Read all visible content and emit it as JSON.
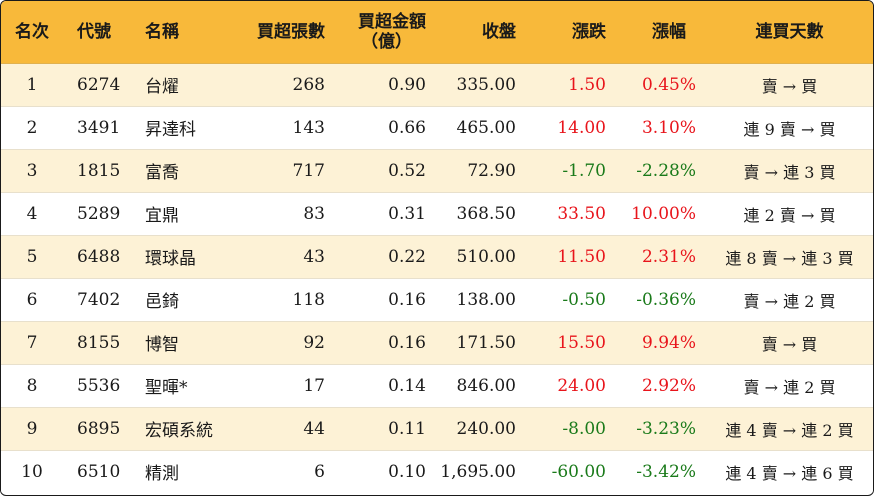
{
  "headers": {
    "rank": "名次",
    "code": "代號",
    "name": "名稱",
    "net_buy_lots": "買超張數",
    "net_buy_amount_line1": "買超金額",
    "net_buy_amount_line2": "（億）",
    "close": "收盤",
    "change": "漲跌",
    "change_pct": "漲幅",
    "streak": "連買天數"
  },
  "colors": {
    "header_bg": "#f8b93a",
    "row_alt_bg": "#fdf2d6",
    "up": "#e8141b",
    "down": "#1a7a1a"
  },
  "rows": [
    {
      "rank": "1",
      "code": "6274",
      "name": "台燿",
      "lots": "268",
      "amount": "0.90",
      "close": "335.00",
      "change": "1.50",
      "pct": "0.45%",
      "dir": "up",
      "streak": "賣 → 買"
    },
    {
      "rank": "2",
      "code": "3491",
      "name": "昇達科",
      "lots": "143",
      "amount": "0.66",
      "close": "465.00",
      "change": "14.00",
      "pct": "3.10%",
      "dir": "up",
      "streak": "連 9 賣 → 買"
    },
    {
      "rank": "3",
      "code": "1815",
      "name": "富喬",
      "lots": "717",
      "amount": "0.52",
      "close": "72.90",
      "change": "-1.70",
      "pct": "-2.28%",
      "dir": "down",
      "streak": "賣 → 連 3 買"
    },
    {
      "rank": "4",
      "code": "5289",
      "name": "宜鼎",
      "lots": "83",
      "amount": "0.31",
      "close": "368.50",
      "change": "33.50",
      "pct": "10.00%",
      "dir": "up",
      "streak": "連 2 賣 → 買"
    },
    {
      "rank": "5",
      "code": "6488",
      "name": "環球晶",
      "lots": "43",
      "amount": "0.22",
      "close": "510.00",
      "change": "11.50",
      "pct": "2.31%",
      "dir": "up",
      "streak": "連 8 賣 → 連 3 買"
    },
    {
      "rank": "6",
      "code": "7402",
      "name": "邑錡",
      "lots": "118",
      "amount": "0.16",
      "close": "138.00",
      "change": "-0.50",
      "pct": "-0.36%",
      "dir": "down",
      "streak": "賣 → 連 2 買"
    },
    {
      "rank": "7",
      "code": "8155",
      "name": "博智",
      "lots": "92",
      "amount": "0.16",
      "close": "171.50",
      "change": "15.50",
      "pct": "9.94%",
      "dir": "up",
      "streak": "賣 → 買"
    },
    {
      "rank": "8",
      "code": "5536",
      "name": "聖暉*",
      "lots": "17",
      "amount": "0.14",
      "close": "846.00",
      "change": "24.00",
      "pct": "2.92%",
      "dir": "up",
      "streak": "賣 → 連 2 買"
    },
    {
      "rank": "9",
      "code": "6895",
      "name": "宏碩系統",
      "lots": "44",
      "amount": "0.11",
      "close": "240.00",
      "change": "-8.00",
      "pct": "-3.23%",
      "dir": "down",
      "streak": "連 4 賣 → 連 2 買"
    },
    {
      "rank": "10",
      "code": "6510",
      "name": "精測",
      "lots": "6",
      "amount": "0.10",
      "close": "1,695.00",
      "change": "-60.00",
      "pct": "-3.42%",
      "dir": "down",
      "streak": "連 4 賣 → 連 6 買"
    }
  ]
}
